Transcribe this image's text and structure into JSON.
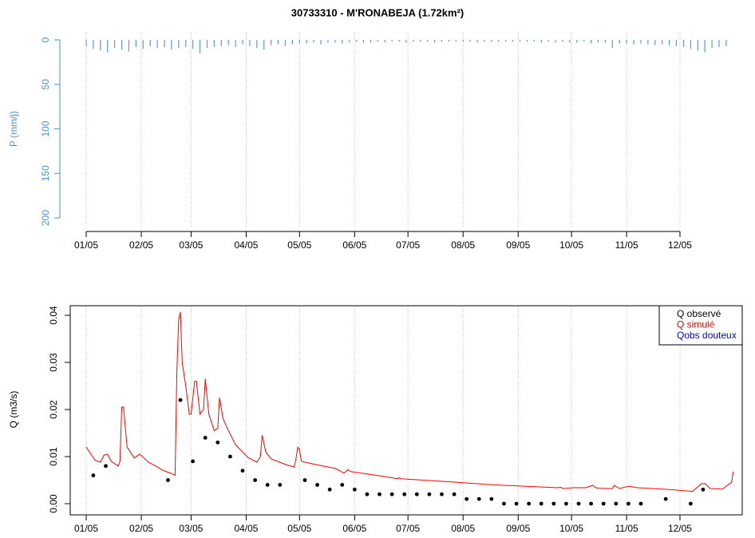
{
  "chart_data": [
    {
      "type": "bar",
      "title": "30733310 - M'RONABEJA (1.72km²)",
      "y_label": "P (mm/j)",
      "color": "#5b9bd5",
      "label_color": "#4a90d9",
      "y_reversed": true,
      "grid": true,
      "xlim": [
        1,
        365
      ],
      "xticks": [
        {
          "value": 1,
          "label": "01/05"
        },
        {
          "value": 32,
          "label": "02/05"
        },
        {
          "value": 60,
          "label": "03/05"
        },
        {
          "value": 91,
          "label": "04/05"
        },
        {
          "value": 121,
          "label": "05/05"
        },
        {
          "value": 152,
          "label": "06/05"
        },
        {
          "value": 182,
          "label": "07/05"
        },
        {
          "value": 213,
          "label": "08/05"
        },
        {
          "value": 244,
          "label": "09/05"
        },
        {
          "value": 274,
          "label": "10/05"
        },
        {
          "value": 305,
          "label": "11/05"
        },
        {
          "value": 335,
          "label": "12/05"
        }
      ],
      "ylim": [
        0,
        200
      ],
      "yticks": [
        0,
        50,
        100,
        150,
        200
      ],
      "x": [
        1,
        5,
        9,
        13,
        17,
        21,
        25,
        29,
        33,
        37,
        41,
        45,
        49,
        53,
        57,
        61,
        65,
        69,
        73,
        77,
        81,
        85,
        89,
        93,
        97,
        101,
        105,
        109,
        113,
        117,
        121,
        125,
        129,
        133,
        137,
        141,
        145,
        149,
        153,
        157,
        161,
        165,
        169,
        173,
        177,
        181,
        185,
        189,
        193,
        197,
        201,
        205,
        209,
        213,
        217,
        221,
        225,
        229,
        233,
        237,
        241,
        245,
        249,
        253,
        257,
        261,
        265,
        269,
        273,
        277,
        281,
        285,
        289,
        293,
        297,
        301,
        305,
        309,
        313,
        317,
        321,
        325,
        329,
        333,
        337,
        341,
        345,
        349,
        353,
        357,
        361
      ],
      "values": [
        7,
        10,
        12,
        14,
        9,
        11,
        13,
        8,
        10,
        7,
        9,
        8,
        11,
        9,
        8,
        10,
        15,
        9,
        8,
        7,
        6,
        8,
        5,
        7,
        9,
        11,
        6,
        5,
        7,
        5,
        4,
        4,
        3,
        5,
        3,
        3,
        4,
        3,
        2,
        3,
        3,
        2,
        3,
        2,
        2,
        3,
        2,
        2,
        2,
        3,
        2,
        2,
        2,
        2,
        2,
        3,
        2,
        2,
        2,
        2,
        2,
        2,
        2,
        2,
        3,
        2,
        3,
        2,
        3,
        3,
        2,
        4,
        3,
        3,
        9,
        4,
        4,
        5,
        4,
        5,
        6,
        5,
        6,
        7,
        8,
        10,
        12,
        14,
        9,
        8,
        7
      ]
    },
    {
      "type": "line",
      "y_label": "Q (m3/s)",
      "grid": true,
      "legend": "top-right",
      "xlim": [
        1,
        365
      ],
      "xticks": [
        {
          "value": 1,
          "label": "01/05"
        },
        {
          "value": 32,
          "label": "02/05"
        },
        {
          "value": 60,
          "label": "03/05"
        },
        {
          "value": 91,
          "label": "04/05"
        },
        {
          "value": 121,
          "label": "05/05"
        },
        {
          "value": 152,
          "label": "06/05"
        },
        {
          "value": 182,
          "label": "07/05"
        },
        {
          "value": 213,
          "label": "08/05"
        },
        {
          "value": 244,
          "label": "09/05"
        },
        {
          "value": 274,
          "label": "10/05"
        },
        {
          "value": 305,
          "label": "11/05"
        },
        {
          "value": 335,
          "label": "12/05"
        }
      ],
      "ylim": [
        0,
        0.04
      ],
      "yticks": [
        {
          "value": 0,
          "label": "0.00"
        },
        0.01,
        0.02,
        0.03,
        0.04
      ],
      "series": [
        {
          "name": "Q observé",
          "color": "black",
          "mark": "point",
          "x": [
            5,
            12,
            47,
            54,
            61,
            68,
            75,
            82,
            89,
            96,
            103,
            110,
            124,
            131,
            138,
            145,
            152,
            159,
            166,
            173,
            180,
            187,
            194,
            201,
            208,
            215,
            222,
            229,
            236,
            243,
            250,
            257,
            264,
            271,
            278,
            285,
            292,
            299,
            306,
            313,
            327,
            341,
            348
          ],
          "values": [
            0.006,
            0.008,
            0.005,
            0.022,
            0.009,
            0.014,
            0.013,
            0.01,
            0.007,
            0.005,
            0.004,
            0.004,
            0.005,
            0.004,
            0.003,
            0.004,
            0.003,
            0.002,
            0.002,
            0.002,
            0.002,
            0.002,
            0.002,
            0.002,
            0.002,
            0.001,
            0.001,
            0.001,
            0,
            0,
            0,
            0,
            0,
            0,
            0,
            0,
            0,
            0,
            0,
            0,
            0.001,
            0,
            0.003
          ]
        },
        {
          "name": "Q simulé",
          "color": "red",
          "mark": "line",
          "x": [
            1,
            6,
            9,
            11,
            13,
            15,
            19,
            20,
            21,
            22,
            24,
            28,
            31,
            32,
            36,
            41,
            43,
            46,
            49,
            50,
            51,
            52,
            53,
            54,
            55,
            57,
            59,
            60,
            62,
            63,
            65,
            67,
            68,
            70,
            73,
            75,
            76,
            78,
            81,
            85,
            92,
            97,
            99,
            100,
            102,
            105,
            114,
            118,
            119,
            120,
            121,
            122,
            130,
            141,
            146,
            147,
            148,
            150,
            168,
            176,
            177,
            178,
            203,
            230,
            266,
            268,
            269,
            275,
            282,
            286,
            288,
            297,
            298,
            301,
            306,
            311,
            329,
            342,
            347,
            349,
            352,
            359,
            362,
            364,
            365
          ],
          "values": [
            0.012,
            0.0092,
            0.0088,
            0.0103,
            0.0105,
            0.009,
            0.008,
            0.009,
            0.0205,
            0.0205,
            0.012,
            0.0097,
            0.0105,
            0.0102,
            0.0088,
            0.0078,
            0.0073,
            0.0068,
            0.0064,
            0.0062,
            0.006,
            0.028,
            0.039,
            0.0407,
            0.03,
            0.025,
            0.019,
            0.019,
            0.026,
            0.026,
            0.019,
            0.02,
            0.0265,
            0.019,
            0.0155,
            0.016,
            0.0225,
            0.018,
            0.0155,
            0.0125,
            0.0098,
            0.0088,
            0.01,
            0.0145,
            0.011,
            0.0095,
            0.0082,
            0.0078,
            0.0095,
            0.012,
            0.0115,
            0.009,
            0.0083,
            0.0075,
            0.0065,
            0.0068,
            0.0072,
            0.0068,
            0.0058,
            0.0053,
            0.0055,
            0.0053,
            0.0047,
            0.004,
            0.0034,
            0.0035,
            0.0032,
            0.0034,
            0.0034,
            0.0039,
            0.0033,
            0.0032,
            0.0039,
            0.0032,
            0.0037,
            0.0034,
            0.003,
            0.0026,
            0.0042,
            0.0043,
            0.0032,
            0.0031,
            0.004,
            0.0045,
            0.0068
          ]
        },
        {
          "name": "Qobs douteux",
          "color": "blue",
          "mark": "point",
          "x": [],
          "values": []
        }
      ]
    }
  ]
}
